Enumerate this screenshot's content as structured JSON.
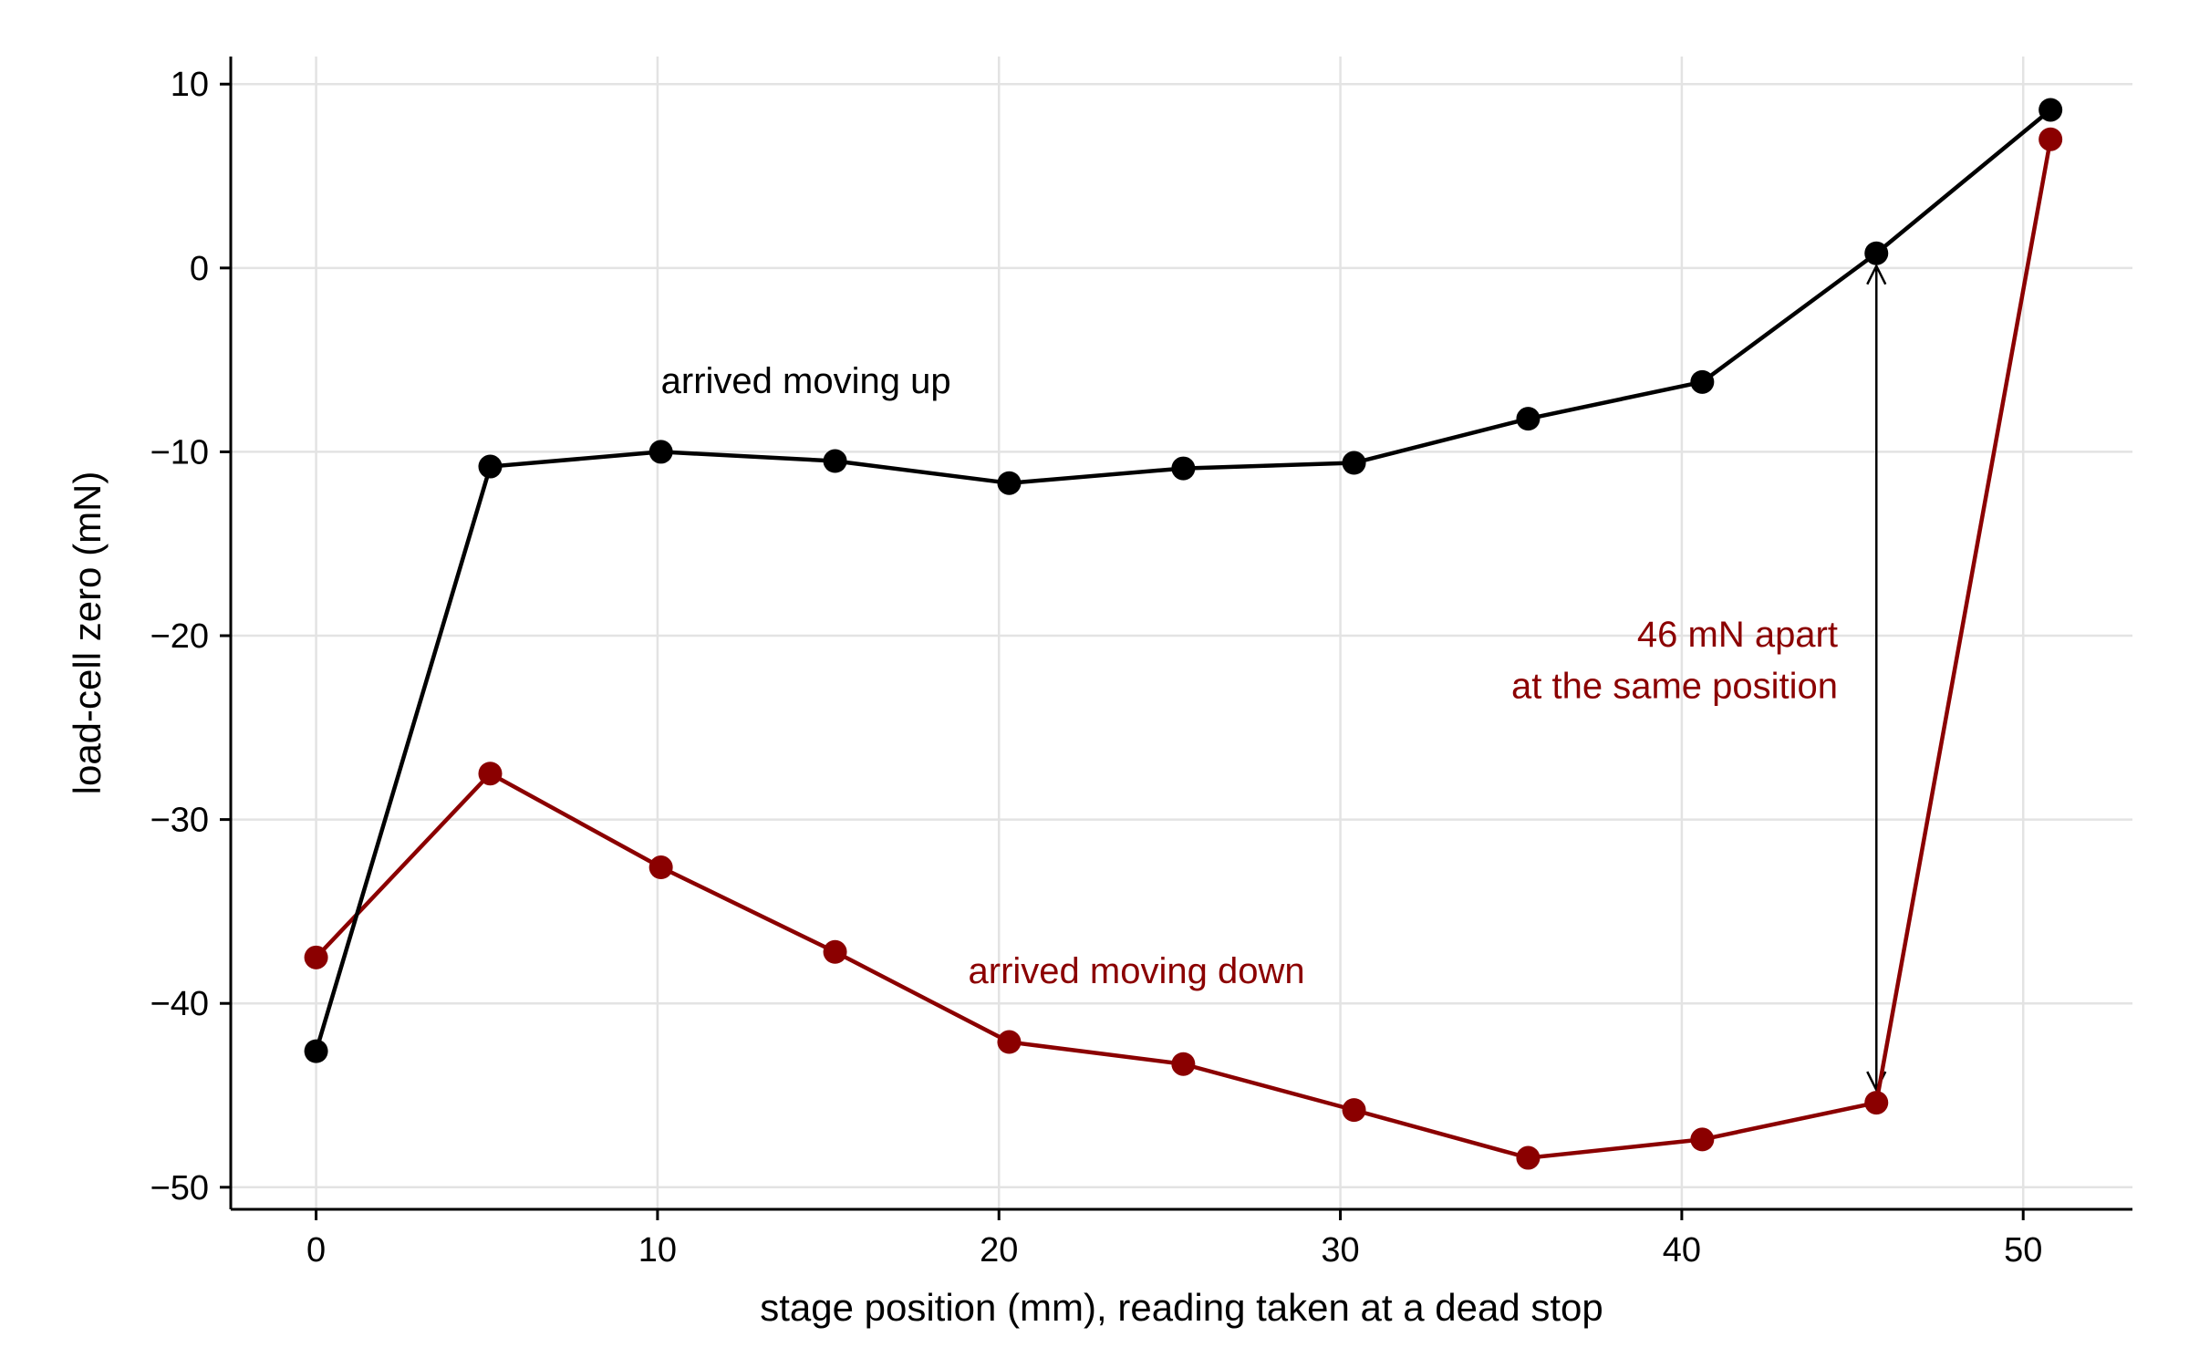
{
  "chart_data": {
    "type": "line",
    "title": "",
    "xlabel": "stage position (mm), reading taken at a dead stop",
    "ylabel": "load-cell zero (mN)",
    "xlim": [
      -2.5,
      53.2
    ],
    "ylim": [
      -51.2,
      11.5
    ],
    "grid": true,
    "xticks": [
      0,
      10,
      20,
      30,
      40,
      50
    ],
    "yticks": [
      10,
      0,
      -10,
      -20,
      -30,
      -40,
      -50
    ],
    "xtick_labels": [
      "0",
      "10",
      "20",
      "30",
      "40",
      "50"
    ],
    "ytick_labels": [
      "10",
      "0",
      "−10",
      "−20",
      "−30",
      "−40",
      "−50"
    ],
    "series": [
      {
        "name": "arrived moving up",
        "color": "#000000",
        "x": [
          0,
          5.1,
          10.1,
          15.2,
          20.3,
          25.4,
          30.4,
          35.5,
          40.6,
          45.7,
          50.8
        ],
        "y": [
          -42.6,
          -10.8,
          -10.0,
          -10.5,
          -11.7,
          -10.9,
          -10.6,
          -8.2,
          -6.2,
          0.8,
          8.6
        ]
      },
      {
        "name": "arrived moving down",
        "color": "#8b0000",
        "x": [
          0,
          5.1,
          10.1,
          15.2,
          20.3,
          25.4,
          30.4,
          35.5,
          40.6,
          45.7,
          50.8
        ],
        "y": [
          -37.5,
          -27.5,
          -32.6,
          -37.2,
          -42.1,
          -43.3,
          -45.8,
          -48.4,
          -47.4,
          -45.4,
          7.0
        ]
      }
    ],
    "annotations": {
      "up_label": "arrived moving up",
      "down_label": "arrived moving down",
      "gap_line1": "46 mN apart",
      "gap_line2": "at the same position",
      "arrow_x": 45.7,
      "arrow_y_top": 0.8,
      "arrow_y_bottom": -45.4
    }
  }
}
